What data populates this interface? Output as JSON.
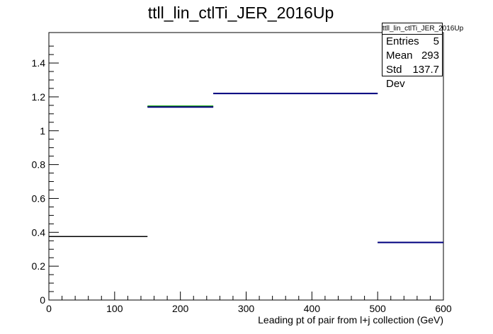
{
  "chart_data": {
    "type": "step",
    "title": "ttll_lin_ctlTi_JER_2016Up",
    "xlabel": "Leading pt of pair from l+j collection (GeV)",
    "ylabel": "",
    "xlim": [
      0,
      600
    ],
    "ylim": [
      0,
      1.58
    ],
    "x_ticks": [
      "0",
      "100",
      "200",
      "300",
      "400",
      "500",
      "600"
    ],
    "y_ticks": [
      "0",
      "0.2",
      "0.4",
      "0.6",
      "0.8",
      "1",
      "1.2",
      "1.4"
    ],
    "grid": false,
    "series": [
      {
        "color": "#000000",
        "bins": [
          {
            "x0": 0,
            "x1": 150,
            "y": 0.375
          },
          {
            "x0": 150,
            "x1": 250,
            "y": 1.142
          },
          {
            "x0": 250,
            "x1": 500,
            "y": 1.22
          },
          {
            "x0": 500,
            "x1": 600,
            "y": 0.34
          }
        ]
      },
      {
        "color": "#00a000",
        "bins": [
          {
            "x0": 150,
            "x1": 250,
            "y": 1.145
          }
        ]
      },
      {
        "color": "#000080",
        "bins": [
          {
            "x0": 150,
            "x1": 250,
            "y": 1.14
          },
          {
            "x0": 250,
            "x1": 500,
            "y": 1.22
          },
          {
            "x0": 500,
            "x1": 600,
            "y": 0.34
          }
        ]
      }
    ]
  },
  "stats_box": {
    "title": "ttll_lin_ctlTi_JER_2016Up",
    "rows": [
      {
        "label": "Entries",
        "value": "5"
      },
      {
        "label": "Mean",
        "value": "293"
      },
      {
        "label": "Std Dev",
        "value": "137.7"
      }
    ]
  }
}
